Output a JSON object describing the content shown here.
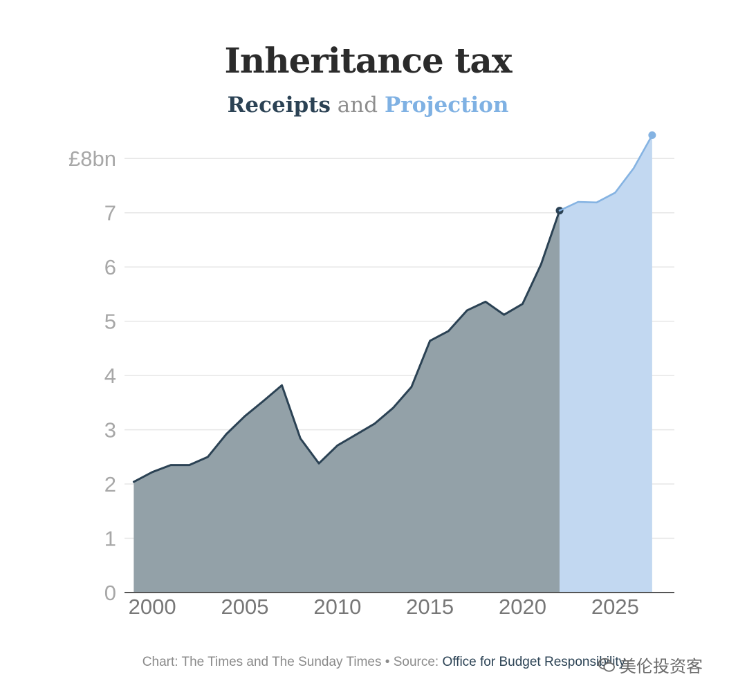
{
  "chart_data": {
    "type": "area",
    "title": "Inheritance tax",
    "subtitle": {
      "receipts": "Receipts",
      "and": "and",
      "projection": "Projection"
    },
    "ylabel": "£bn",
    "ylim": [
      0,
      8.5
    ],
    "xlim": [
      1998.5,
      2028.2
    ],
    "y_ticks": [
      {
        "value": 0,
        "label": "0"
      },
      {
        "value": 1,
        "label": "1"
      },
      {
        "value": 2,
        "label": "2"
      },
      {
        "value": 3,
        "label": "3"
      },
      {
        "value": 4,
        "label": "4"
      },
      {
        "value": 5,
        "label": "5"
      },
      {
        "value": 6,
        "label": "6"
      },
      {
        "value": 7,
        "label": "7"
      },
      {
        "value": 8,
        "label": "£8bn"
      }
    ],
    "x_ticks": [
      {
        "value": 2000,
        "label": "2000"
      },
      {
        "value": 2005,
        "label": "2005"
      },
      {
        "value": 2010,
        "label": "2010"
      },
      {
        "value": 2015,
        "label": "2015"
      },
      {
        "value": 2020,
        "label": "2020"
      },
      {
        "value": 2025,
        "label": "2025"
      }
    ],
    "grid": true,
    "series": [
      {
        "name": "Receipts",
        "color": "#2b4254",
        "fill": "#93a1a8",
        "x": [
          1999,
          2000,
          2001,
          2002,
          2003,
          2004,
          2005,
          2006,
          2007,
          2008,
          2009,
          2010,
          2011,
          2012,
          2013,
          2014,
          2015,
          2016,
          2017,
          2018,
          2019,
          2020,
          2021,
          2022
        ],
        "values": [
          2.04,
          2.22,
          2.35,
          2.35,
          2.5,
          2.92,
          3.25,
          3.53,
          3.82,
          2.84,
          2.38,
          2.71,
          2.91,
          3.11,
          3.4,
          3.79,
          4.64,
          4.82,
          5.2,
          5.36,
          5.12,
          5.32,
          6.05,
          7.04
        ]
      },
      {
        "name": "Projection",
        "color": "#85b3e2",
        "fill": "#c2d8f1",
        "x": [
          2022,
          2023,
          2024,
          2025,
          2026,
          2027
        ],
        "values": [
          7.04,
          7.2,
          7.19,
          7.37,
          7.82,
          8.43
        ]
      }
    ]
  },
  "footer": {
    "credit": "Chart: The Times and The Sunday Times",
    "separator": "•",
    "source_label": "Source:",
    "source_org": "Office for Budget Responsibility"
  },
  "watermark": {
    "text": "美伦投资客"
  },
  "colors": {
    "receipts_line": "#2b4254",
    "receipts_fill": "#93a1a8",
    "projection_line": "#85b3e2",
    "projection_fill": "#c2d8f1",
    "grid": "#e6e6e6"
  }
}
